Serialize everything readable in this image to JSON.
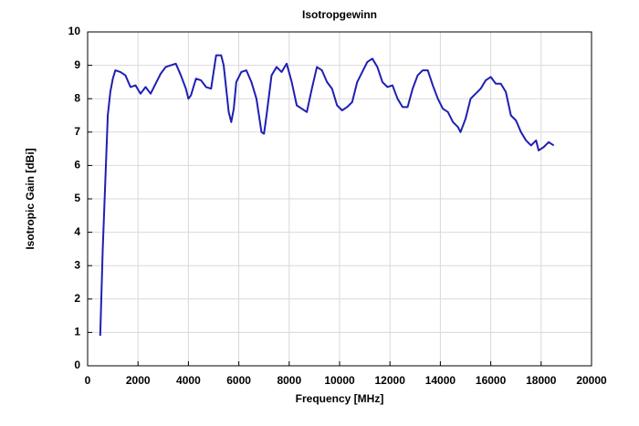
{
  "chart_data": {
    "type": "line",
    "title": "Isotropgewinn",
    "x_label": "Frequency [MHz]",
    "y_label": "Isotropic Gain [dBi]",
    "x": [
      500,
      600,
      700,
      800,
      900,
      1000,
      1100,
      1300,
      1500,
      1700,
      1900,
      2100,
      2300,
      2500,
      2700,
      2900,
      3100,
      3300,
      3500,
      3700,
      3900,
      4000,
      4100,
      4300,
      4500,
      4700,
      4900,
      5000,
      5100,
      5300,
      5400,
      5500,
      5600,
      5700,
      5800,
      5900,
      6100,
      6300,
      6500,
      6700,
      6900,
      7000,
      7100,
      7300,
      7500,
      7700,
      7900,
      8100,
      8300,
      8500,
      8700,
      8900,
      9100,
      9300,
      9500,
      9700,
      9900,
      10100,
      10300,
      10500,
      10700,
      10900,
      11100,
      11300,
      11500,
      11700,
      11900,
      12100,
      12300,
      12500,
      12700,
      12900,
      13100,
      13300,
      13500,
      13700,
      13900,
      14100,
      14300,
      14500,
      14700,
      14800,
      15000,
      15200,
      15400,
      15600,
      15800,
      16000,
      16200,
      16400,
      16600,
      16800,
      17000,
      17200,
      17400,
      17600,
      17800,
      17900,
      18100,
      18300,
      18500
    ],
    "series": [
      {
        "name": "Isotropic Gain",
        "color": "#1f1fb4",
        "values": [
          0.9,
          3.5,
          5.5,
          7.5,
          8.2,
          8.6,
          8.85,
          8.8,
          8.7,
          8.35,
          8.4,
          8.15,
          8.35,
          8.15,
          8.45,
          8.75,
          8.95,
          9.0,
          9.05,
          8.7,
          8.3,
          8.0,
          8.1,
          8.6,
          8.55,
          8.35,
          8.3,
          8.8,
          9.3,
          9.3,
          9.0,
          8.3,
          7.6,
          7.3,
          7.7,
          8.5,
          8.8,
          8.85,
          8.5,
          8.0,
          7.0,
          6.95,
          7.5,
          8.7,
          8.95,
          8.8,
          9.05,
          8.5,
          7.8,
          7.7,
          7.6,
          8.3,
          8.95,
          8.85,
          8.5,
          8.3,
          7.8,
          7.65,
          7.75,
          7.9,
          8.5,
          8.8,
          9.1,
          9.2,
          8.95,
          8.5,
          8.35,
          8.4,
          8.0,
          7.75,
          7.75,
          8.3,
          8.7,
          8.85,
          8.85,
          8.4,
          8.0,
          7.7,
          7.6,
          7.3,
          7.15,
          7.0,
          7.4,
          8.0,
          8.15,
          8.3,
          8.55,
          8.65,
          8.45,
          8.45,
          8.2,
          7.5,
          7.35,
          7.0,
          6.75,
          6.6,
          6.75,
          6.45,
          6.55,
          6.7,
          6.6
        ]
      }
    ],
    "xlim": [
      0,
      20000
    ],
    "xticks": [
      0,
      2000,
      4000,
      6000,
      8000,
      10000,
      12000,
      14000,
      16000,
      18000,
      20000
    ],
    "ylim": [
      0,
      10
    ],
    "yticks": [
      0,
      1,
      2,
      3,
      4,
      5,
      6,
      7,
      8,
      9,
      10
    ],
    "grid": true
  }
}
